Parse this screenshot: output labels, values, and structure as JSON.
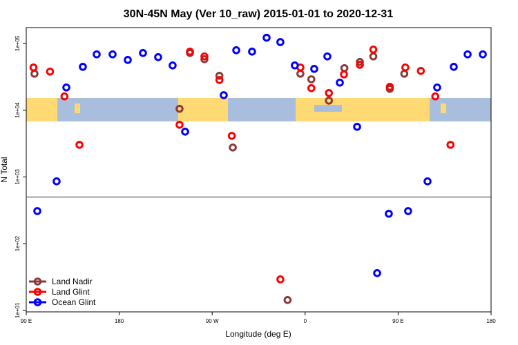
{
  "chart_data": {
    "type": "scatter",
    "title": "30N-45N May (Ver 10_raw)   2015-01-01 to 2020-12-31",
    "x_label": "Longitude (deg E)",
    "y_label": "N Total",
    "log_y": true,
    "legend": "bottom-left",
    "xlim": [
      90,
      540
    ],
    "ylim": [
      9.5,
      173000
    ],
    "xticks": [
      {
        "value": 90,
        "label": "90 E"
      },
      180,
      {
        "value": 270,
        "label": "90 W"
      },
      {
        "value": 360,
        "label": "0"
      },
      {
        "value": 450,
        "label": "90 E"
      },
      {
        "value": 540,
        "label": "180"
      }
    ],
    "yticks": [
      {
        "value": 10,
        "label": "1e+01"
      },
      {
        "value": 100,
        "label": "1e+02"
      },
      {
        "value": 1000,
        "label": "1e+03"
      },
      {
        "value": 10000,
        "label": "1e+04"
      },
      {
        "value": 100000,
        "label": "1e+05"
      }
    ],
    "hline": 500,
    "series": [
      {
        "name": "Land Nadir",
        "color": "#8b3a3a",
        "x": [
          98,
          248.5,
          262.5,
          277,
          238.4,
          290,
          355.4,
          366,
          383,
          398,
          426,
          442,
          456,
          343,
          413
        ],
        "values": [
          35200,
          72000,
          58100,
          32800,
          10500,
          2760,
          35200,
          29100,
          13900,
          42700,
          64000,
          20900,
          35200,
          14.3,
          52800
        ]
      },
      {
        "name": "Land Glint",
        "color": "#ff0000",
        "x": [
          97,
          113,
          127,
          141.5,
          248.5,
          262.5,
          277,
          238.4,
          289,
          355.4,
          366,
          383,
          397.6,
          413,
          426,
          442,
          457,
          472,
          486,
          500.7,
          336
        ],
        "values": [
          43700,
          37900,
          16100,
          3030,
          75500,
          64000,
          28400,
          6050,
          4130,
          43700,
          21400,
          18100,
          34400,
          48000,
          81100,
          22400,
          43700,
          38800,
          16100,
          3030,
          29.2
        ]
      },
      {
        "name": "Ocean Glint",
        "color": "#0000ff",
        "x": [
          100.7,
          119.4,
          128.8,
          144.8,
          158.2,
          173.6,
          188.3,
          203,
          217.7,
          231.7,
          243.8,
          281.2,
          293.3,
          308.6,
          322.7,
          336,
          350,
          368.8,
          381.5,
          393.6,
          410.3,
          429.7,
          441,
          459.7,
          478.5,
          487.8,
          503.9,
          517.3,
          532
        ],
        "values": [
          308,
          859,
          21900,
          44700,
          68700,
          68700,
          56700,
          72000,
          62400,
          46900,
          4770,
          16800,
          79200,
          75500,
          122000,
          105000,
          46900,
          41600,
          64000,
          25900,
          5640,
          36.2,
          281,
          308,
          859,
          21900,
          44700,
          68700,
          68700
        ]
      }
    ]
  }
}
